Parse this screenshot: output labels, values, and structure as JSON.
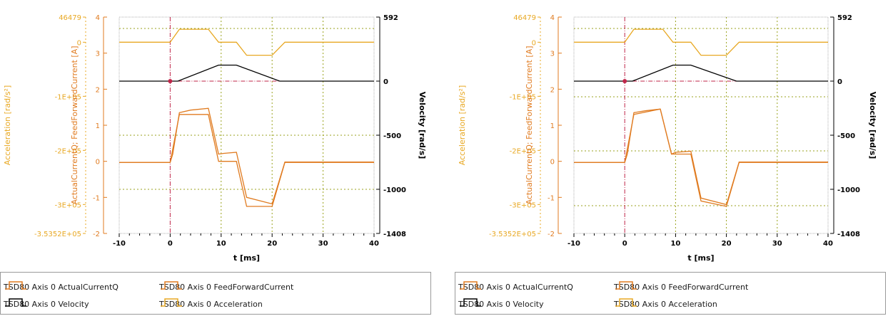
{
  "charts": [
    {
      "id": "left",
      "variant": "a",
      "legend": [
        {
          "label": "TSD80 Axis 0 ActualCurrentQ",
          "color": "#e07b20",
          "kind": "scope-icon"
        },
        {
          "label": "TSD80 Axis 0 FeedForwardCurrent",
          "color": "#e07b20",
          "kind": "scope-icon"
        },
        {
          "label": "TSD80 Axis 0 Velocity",
          "color": "#000000",
          "kind": "scope-icon"
        },
        {
          "label": "TSD80 Axis 0 Acceleration",
          "color": "#e8a823",
          "kind": "scope-icon"
        }
      ]
    },
    {
      "id": "right",
      "variant": "b",
      "legend": [
        {
          "label": "TSD80 Axis 0 ActualCurrentQ",
          "color": "#e07b20",
          "kind": "scope-icon"
        },
        {
          "label": "TSD80 Axis 0 FeedForwardCurrent",
          "color": "#e07b20",
          "kind": "scope-icon"
        },
        {
          "label": "TSD80 Axis 0 Velocity",
          "color": "#000000",
          "kind": "scope-icon"
        },
        {
          "label": "TSD80 Axis 0 Acceleration",
          "color": "#e8a823",
          "kind": "scope-icon"
        }
      ]
    }
  ],
  "chart_data": [
    {
      "type": "line",
      "xlabel": "t [ms]",
      "xlim": [
        -10,
        40
      ],
      "x_ticks": [
        "-10",
        "0",
        "10",
        "20",
        "30",
        "40"
      ],
      "y_left_outer": {
        "label": "Acceleration [rad/s²]",
        "ticks": [
          "46479",
          "0",
          "-1E+05",
          "-2E+05",
          "-3E+05",
          "-3.5352E+05"
        ],
        "values": [
          46479,
          0,
          -100000,
          -200000,
          -300000,
          -353520
        ],
        "ylim": [
          -353520,
          46479
        ],
        "color": "#e8a823"
      },
      "y_left_inner": {
        "label": "ActualCurrentQ; FeedForwardCurrent [A]",
        "ticks": [
          "4",
          "3",
          "2",
          "1",
          "0",
          "-1",
          "-2"
        ],
        "values": [
          4,
          3,
          2,
          1,
          0,
          -1,
          -2
        ],
        "ylim": [
          -2,
          4
        ],
        "color": "#e07b20"
      },
      "y_right": {
        "label": "Velocity [rad/s]",
        "ticks": [
          "592",
          "0",
          "-500",
          "-1000",
          "-1408"
        ],
        "values": [
          592,
          0,
          -500,
          -1000,
          -1408
        ],
        "ylim": [
          -1408,
          592
        ],
        "color": "#000000"
      },
      "series": [
        {
          "name": "TSD80 Axis 0 ActualCurrentQ",
          "axis": "current",
          "color": "#e07b20",
          "x": [
            -10,
            0,
            0.5,
            1.8,
            4,
            7.5,
            9.5,
            10.5,
            13,
            15,
            20,
            22.5,
            40
          ],
          "y": [
            -0.03,
            -0.03,
            0.2,
            1.35,
            1.42,
            1.47,
            0.2,
            0.22,
            0.25,
            -1.0,
            -1.18,
            -0.02,
            -0.02
          ]
        },
        {
          "name": "TSD80 Axis 0 FeedForwardCurrent",
          "axis": "current",
          "color": "#e07b20",
          "x": [
            -10,
            0,
            1.8,
            7.5,
            9.5,
            13,
            15,
            20,
            22.5,
            40
          ],
          "y": [
            -0.03,
            -0.03,
            1.3,
            1.3,
            0.0,
            0.0,
            -1.25,
            -1.25,
            -0.03,
            -0.03
          ]
        },
        {
          "name": "TSD80 Axis 0 Velocity",
          "axis": "velocity",
          "color": "#000000",
          "x": [
            -10,
            0,
            1.5,
            9.5,
            13,
            21.5,
            40
          ],
          "y": [
            0,
            0,
            0,
            148,
            148,
            0,
            0
          ]
        },
        {
          "name": "TSD80 Axis 0 Acceleration",
          "axis": "acceleration",
          "color": "#e8a823",
          "x": [
            -10,
            0,
            1.8,
            7.5,
            9.5,
            13,
            15,
            20,
            22.5,
            40
          ],
          "y": [
            0,
            0,
            24000,
            24000,
            0,
            0,
            -24000,
            -24000,
            0,
            0
          ]
        }
      ],
      "grid": true
    },
    {
      "type": "line",
      "xlabel": "t [ms]",
      "xlim": [
        -10,
        40
      ],
      "x_ticks": [
        "-10",
        "0",
        "10",
        "20",
        "30",
        "40"
      ],
      "y_left_outer": {
        "label": "Acceleration [rad/s²]",
        "ticks": [
          "46479",
          "0",
          "-1E+05",
          "-2E+05",
          "-3E+05",
          "-3.5352E+05"
        ],
        "values": [
          46479,
          0,
          -100000,
          -200000,
          -300000,
          -353520
        ],
        "ylim": [
          -353520,
          46479
        ],
        "color": "#e8a823"
      },
      "y_left_inner": {
        "label": "ActualCurrentQ; FeedForwardCurrent [A]",
        "ticks": [
          "4",
          "3",
          "2",
          "1",
          "0",
          "-1",
          "-2"
        ],
        "values": [
          4,
          3,
          2,
          1,
          0,
          -1,
          -2
        ],
        "ylim": [
          -2,
          4
        ],
        "color": "#e07b20"
      },
      "y_right": {
        "label": "Velocity [rad/s]",
        "ticks": [
          "592",
          "0",
          "-500",
          "-1000",
          "-1408"
        ],
        "values": [
          592,
          0,
          -500,
          -1000,
          -1408
        ],
        "ylim": [
          -1408,
          592
        ],
        "color": "#000000"
      },
      "series": [
        {
          "name": "TSD80 Axis 0 ActualCurrentQ",
          "axis": "current",
          "color": "#e07b20",
          "x": [
            -10,
            0,
            0.5,
            1.8,
            4,
            7,
            9.2,
            10,
            13,
            15,
            20,
            22.5,
            40
          ],
          "y": [
            -0.03,
            -0.03,
            0.2,
            1.35,
            1.4,
            1.45,
            0.2,
            0.25,
            0.28,
            -1.02,
            -1.2,
            -0.02,
            -0.02
          ]
        },
        {
          "name": "TSD80 Axis 0 FeedForwardCurrent",
          "axis": "current",
          "color": "#e07b20",
          "x": [
            -10,
            0,
            1.8,
            7,
            9.2,
            13,
            15,
            20,
            22.5,
            40
          ],
          "y": [
            -0.03,
            -0.03,
            1.3,
            1.45,
            0.2,
            0.2,
            -1.1,
            -1.25,
            -0.03,
            -0.03
          ]
        },
        {
          "name": "TSD80 Axis 0 Velocity",
          "axis": "velocity",
          "color": "#000000",
          "x": [
            -10,
            0,
            1.5,
            9.5,
            13,
            22,
            40
          ],
          "y": [
            0,
            0,
            0,
            148,
            148,
            0,
            0
          ]
        },
        {
          "name": "TSD80 Axis 0 Acceleration",
          "axis": "acceleration",
          "color": "#e8a823",
          "x": [
            -10,
            0,
            1.8,
            7.5,
            9.5,
            13,
            15,
            20,
            22.5,
            40
          ],
          "y": [
            0,
            0,
            24000,
            24000,
            0,
            0,
            -24000,
            -24000,
            0,
            0
          ]
        }
      ],
      "grid": true
    }
  ]
}
